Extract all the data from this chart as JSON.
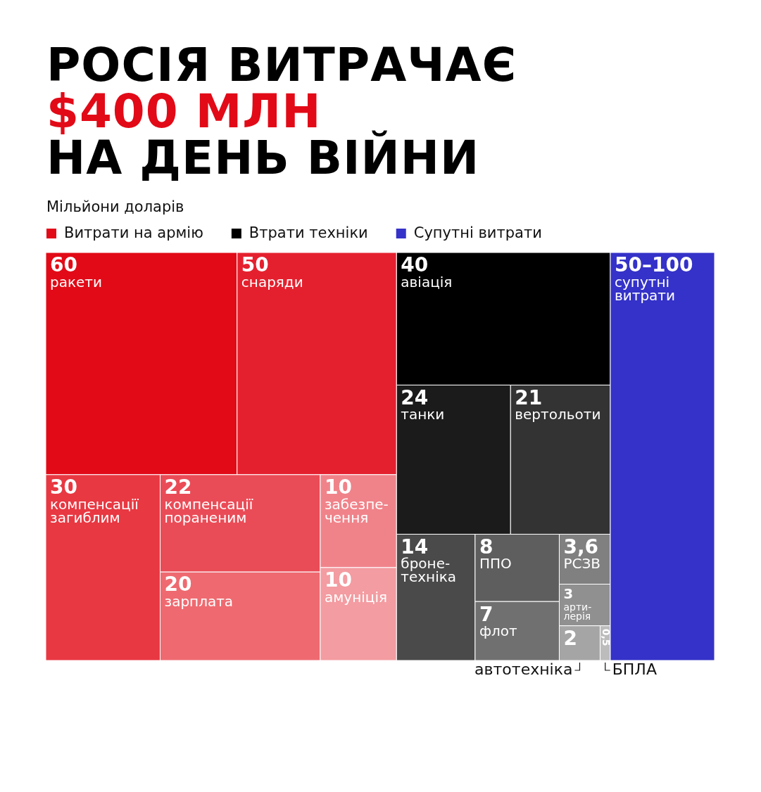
{
  "chart_data": {
    "type": "other",
    "title": "РОСІЯ ВИТРАЧАЄ\n$400 МЛН\nНА ДЕНЬ ВІЙНИ",
    "subtitle": "Мільйони доларів",
    "legend": "top left",
    "categories": [
      "ракети",
      "снаряди",
      "компенсації загиблим",
      "компенсації пораненим",
      "зарплата",
      "забезпе-чення",
      "амуніція",
      "авіація",
      "танки",
      "вертольоти",
      "броне-техніка",
      "ППО",
      "флот",
      "РСЗВ",
      "арти-лерія",
      "автотехніка",
      "БПЛА",
      "супутні витрати"
    ],
    "series": [
      {
        "name": "Витрати на армію",
        "color": "#e20a17",
        "values": [
          60,
          50,
          30,
          22,
          20,
          10,
          10,
          null,
          null,
          null,
          null,
          null,
          null,
          null,
          null,
          null,
          null,
          null
        ],
        "colors": [
          "#e20a17",
          "#e5202e",
          "#e83842",
          "#ea4c57",
          "#ee6a70",
          "#f0838a",
          "#f39ca1",
          null,
          null,
          null,
          null,
          null,
          null,
          null,
          null,
          null,
          null,
          null
        ],
        "value_labels": [
          "60",
          "50",
          "30",
          "22",
          "20",
          "10",
          "10",
          null,
          null,
          null,
          null,
          null,
          null,
          null,
          null,
          null,
          null,
          null
        ]
      },
      {
        "name": "Втрати техніки",
        "color": "#000000",
        "values": [
          null,
          null,
          null,
          null,
          null,
          null,
          null,
          40,
          24,
          21,
          14,
          8,
          7,
          3.6,
          3,
          2,
          0.5,
          null
        ],
        "colors": [
          null,
          null,
          null,
          null,
          null,
          null,
          null,
          "#000000",
          "#1b1b1b",
          "#333333",
          "#4a4a4a",
          "#5e5e5e",
          "#707070",
          "#808080",
          "#909090",
          "#a5a5a5",
          "#bcbcbc",
          null
        ],
        "value_labels": [
          null,
          null,
          null,
          null,
          null,
          null,
          null,
          "40",
          "24",
          "21",
          "14",
          "8",
          "7",
          "3,6",
          "3",
          "2",
          "0,5",
          null
        ]
      },
      {
        "name": "Супутні витрати",
        "color": "#3432c8",
        "values": [
          null,
          null,
          null,
          null,
          null,
          null,
          null,
          null,
          null,
          null,
          null,
          null,
          null,
          null,
          null,
          null,
          null,
          null
        ],
        "colors": [
          null,
          null,
          null,
          null,
          null,
          null,
          null,
          null,
          null,
          null,
          null,
          null,
          null,
          null,
          null,
          null,
          null,
          "#3432c8"
        ],
        "value_labels": [
          null,
          null,
          null,
          null,
          null,
          null,
          null,
          null,
          null,
          null,
          null,
          null,
          null,
          null,
          null,
          null,
          null,
          "50–100"
        ]
      }
    ]
  }
}
